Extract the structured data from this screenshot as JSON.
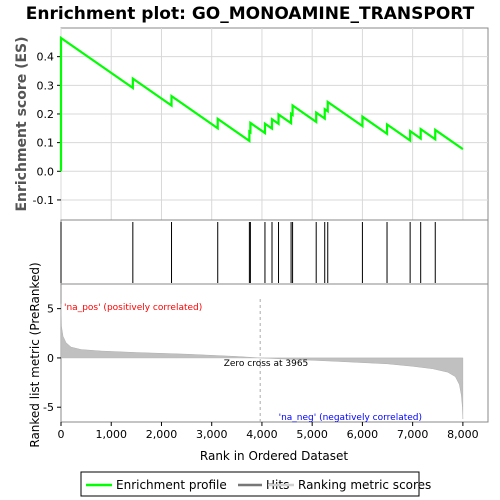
{
  "chart_data": {
    "type": "line",
    "title": "Enrichment plot: GO_MONOAMINE_TRANSPORT",
    "xlabel": "Rank in Ordered Dataset",
    "ylabel_top": "Enrichment score (ES)",
    "ylabel_bottom": "Ranked list metric (PreRanked)",
    "xlim": [
      0,
      8500
    ],
    "x_ticks": [
      0,
      1000,
      2000,
      3000,
      4000,
      5000,
      6000,
      7000,
      8000
    ],
    "x_tick_labels": [
      "0",
      "1,000",
      "2,000",
      "3,000",
      "4,000",
      "5,000",
      "6,000",
      "7,000",
      "8,000"
    ],
    "es_ylim": [
      -0.17,
      0.5
    ],
    "es_ticks": [
      -0.1,
      0.0,
      0.1,
      0.2,
      0.3,
      0.4
    ],
    "es_tick_labels": [
      "-0.1",
      "0.0",
      "0.1",
      "0.2",
      "0.3",
      "0.4"
    ],
    "metric_ylim": [
      -6.5,
      7.5
    ],
    "metric_ticks": [
      -5,
      0,
      5
    ],
    "metric_tick_labels": [
      "-5",
      "0",
      "5"
    ],
    "n_genes": 8000,
    "hits": [
      0,
      1430,
      2200,
      3120,
      3750,
      3770,
      4060,
      4200,
      4330,
      4580,
      4610,
      5080,
      5250,
      5310,
      6000,
      6490,
      6950,
      7160,
      7450
    ],
    "es_start": 0.0,
    "es_peak": 0.465,
    "es_end": 0.0,
    "es_slope_per_gene": -0.0001218,
    "es_step": 0.0326,
    "metric_profile": [
      [
        0,
        5.5
      ],
      [
        10,
        3.2
      ],
      [
        40,
        2.2
      ],
      [
        100,
        1.55
      ],
      [
        200,
        1.1
      ],
      [
        400,
        0.85
      ],
      [
        800,
        0.7
      ],
      [
        1500,
        0.55
      ],
      [
        2500,
        0.38
      ],
      [
        3500,
        0.15
      ],
      [
        3965,
        0.0
      ],
      [
        4500,
        -0.12
      ],
      [
        5500,
        -0.35
      ],
      [
        6500,
        -0.6
      ],
      [
        7000,
        -0.85
      ],
      [
        7400,
        -1.1
      ],
      [
        7700,
        -1.45
      ],
      [
        7850,
        -1.9
      ],
      [
        7930,
        -2.7
      ],
      [
        7970,
        -3.8
      ],
      [
        7990,
        -5.0
      ],
      [
        8000,
        -6.2
      ]
    ],
    "zero_cross": 3965,
    "zero_cross_label": "Zero cross at 3965",
    "pos_label": "'na_pos' (positively correlated)",
    "neg_label": "'na_neg' (negatively correlated)",
    "heatmap_segments": [
      {
        "x0": 0,
        "x1": 1300,
        "color": "#f06060"
      },
      {
        "x0": 1300,
        "x1": 2150,
        "color": "#f47a8a"
      },
      {
        "x0": 2150,
        "x1": 3000,
        "color": "#f79aa4"
      },
      {
        "x0": 3000,
        "x1": 3750,
        "color": "#fbbcd8"
      },
      {
        "x0": 3750,
        "x1": 4000,
        "color": "#fcd6e6"
      },
      {
        "x0": 4000,
        "x1": 5000,
        "color": "#e8e8f8"
      },
      {
        "x0": 5000,
        "x1": 5900,
        "color": "#c8c8f4"
      },
      {
        "x0": 5900,
        "x1": 6450,
        "color": "#8c8cf0"
      },
      {
        "x0": 6450,
        "x1": 7000,
        "color": "#6060e0"
      },
      {
        "x0": 7000,
        "x1": 7650,
        "color": "#4040d8"
      },
      {
        "x0": 7650,
        "x1": 8000,
        "color": "#2000b8"
      }
    ],
    "legend": [
      {
        "label": "Enrichment profile",
        "color": "#00ff00"
      },
      {
        "label": "Hits",
        "color": "#000000"
      },
      {
        "label": "Ranking metric scores",
        "color": "#c0c0c0"
      }
    ],
    "colors": {
      "es_line": "#00ff00",
      "hit": "#000000",
      "metric_fill": "#c0c0c0",
      "pos_text": "#ff0000",
      "neg_text": "#0000ff",
      "zero_line": "#aaaaaa"
    }
  }
}
